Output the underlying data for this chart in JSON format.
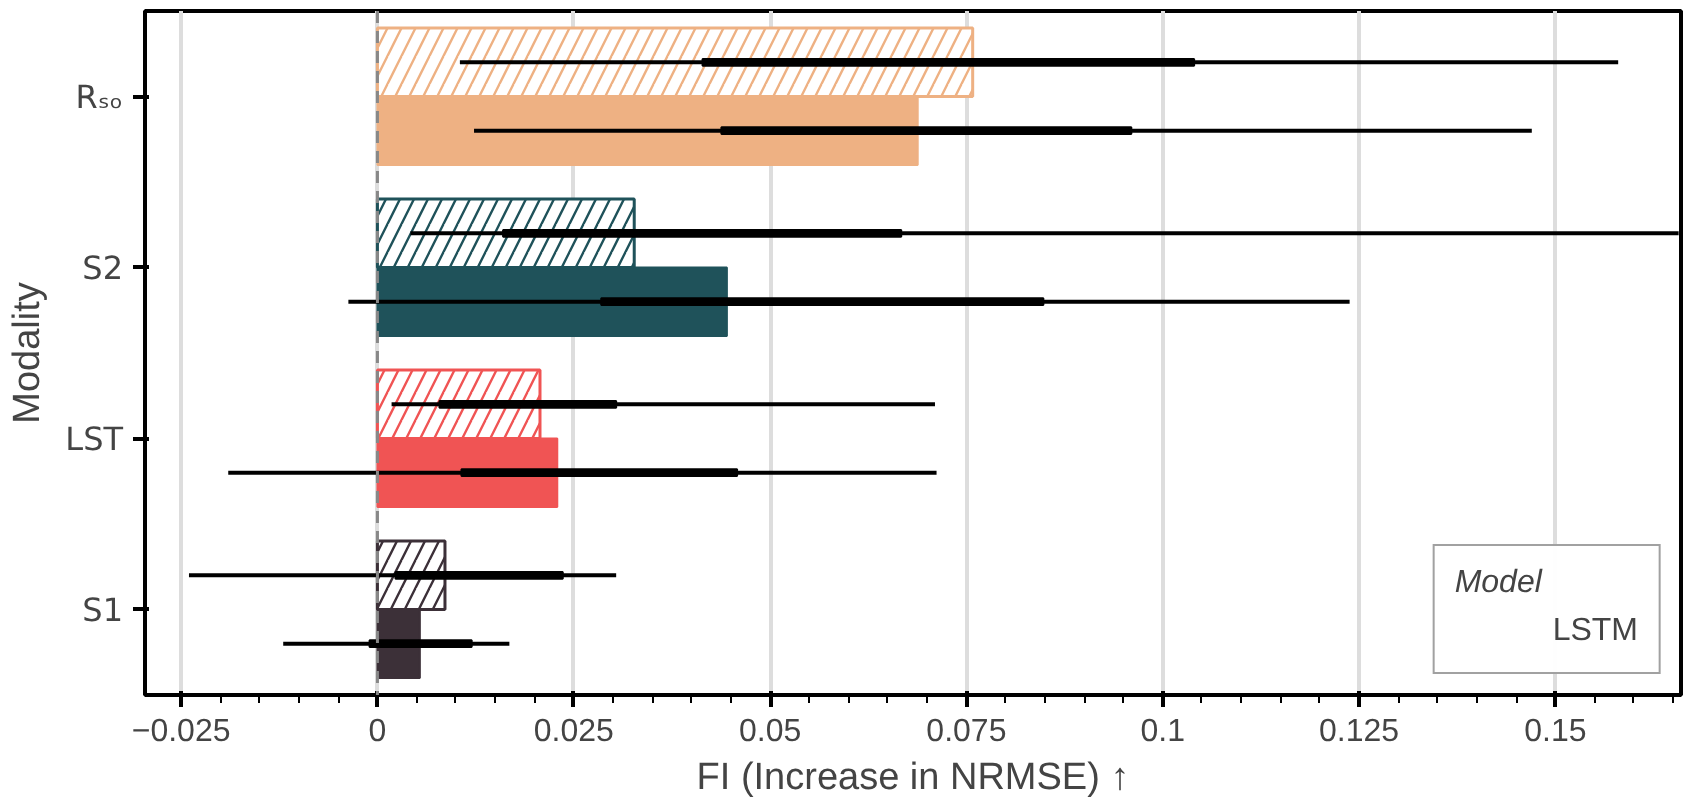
{
  "chart_data": {
    "type": "bar",
    "orientation": "horizontal",
    "xlabel": "FI (Increase in NRMSE) ↑",
    "ylabel": "Modality",
    "legend_title": "Model",
    "legend": "bottom right",
    "grid": "x",
    "categories": [
      "Rₛₒ",
      "S2",
      "LST",
      "S1"
    ],
    "series": [
      {
        "name": "LSTM",
        "colors": [
          "#eeb183",
          "#1f525a",
          "#f05454",
          "#3c3038"
        ],
        "values": [
          0.0758,
          0.0327,
          0.0207,
          0.0086
        ],
        "errors": [
          [
            0.0105,
            0.158
          ],
          [
            0.0042,
            0.1657
          ],
          [
            0.0018,
            0.071
          ],
          [
            -0.024,
            0.0304
          ]
        ]
      },
      {
        "colors": [
          "#eeb183",
          "#1f525a",
          "#f05454",
          "#3c3038"
        ],
        "values": [
          0.0688,
          0.0445,
          0.0229,
          0.0054
        ],
        "errors": [
          [
            0.0123,
            0.147
          ],
          [
            -0.0037,
            0.1238
          ],
          [
            -0.019,
            0.0712
          ],
          [
            -0.012,
            0.0168
          ]
        ]
      },
      {
        "color": "#000000",
        "base": [
          0.0414,
          0.016,
          0.0079,
          0.0023
        ],
        "values": [
          0.0626,
          0.0507,
          0.0225,
          0.0213
        ]
      },
      {
        "color": "#000000",
        "base": [
          0.0438,
          0.0285,
          0.0107,
          -0.001
        ],
        "values": [
          0.0522,
          0.0563,
          0.0351,
          0.013
        ]
      }
    ],
    "xlim": [
      -0.0296,
      0.166
    ],
    "xticks": [
      {
        "value": -0.025,
        "label": "−0.025"
      },
      0,
      0.025,
      0.05,
      0.075,
      0.1,
      0.125,
      0.15
    ],
    "ref_lines": [
      {
        "axis": "x",
        "value": 0,
        "color": "#888888",
        "line_style": "dashed"
      }
    ]
  }
}
